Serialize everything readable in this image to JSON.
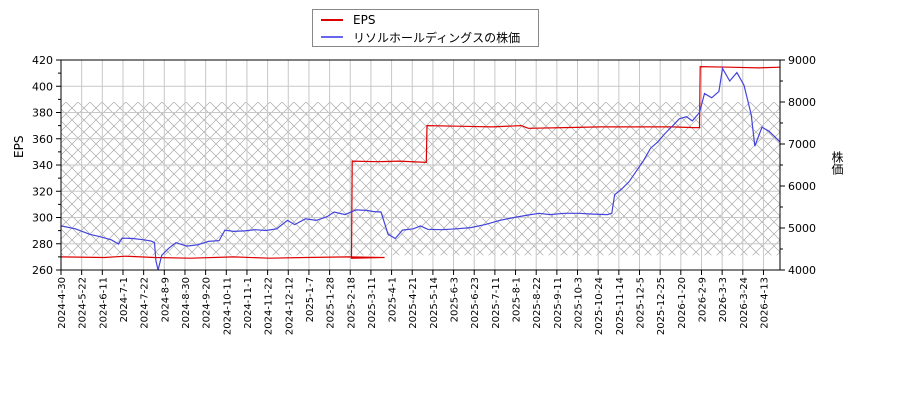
{
  "chart_data": {
    "type": "line",
    "title": "",
    "legend": {
      "position": "top-center",
      "entries": [
        {
          "name": "EPS",
          "color": "#dd0000"
        },
        {
          "name": "リソルホールディングスの株価",
          "color": "#4444dd"
        }
      ]
    },
    "ylabel_left": "EPS",
    "ylabel_right": "株価",
    "ylim_left": [
      260,
      420
    ],
    "ylim_right": [
      4000,
      9000
    ],
    "yticks_left": [
      260,
      280,
      300,
      320,
      340,
      360,
      380,
      400,
      420
    ],
    "yticks_right": [
      4000,
      5000,
      6000,
      7000,
      8000,
      9000
    ],
    "grid": true,
    "hatch_band_right_axis": [
      4350,
      8000
    ],
    "xtick_labels": [
      "2024-4-30",
      "2024-5-22",
      "2024-6-11",
      "2024-7-1",
      "2024-7-22",
      "2024-8-9",
      "2024-8-30",
      "2024-9-20",
      "2024-10-11",
      "2024-11-1",
      "2024-11-22",
      "2024-12-12",
      "2025-1-7",
      "2025-1-28",
      "2025-2-18",
      "2025-3-11",
      "2025-4-1",
      "2025-4-21",
      "2025-5-14",
      "2025-6-3",
      "2025-6-23",
      "2025-7-11",
      "2025-8-1",
      "2025-8-22",
      "2025-9-11",
      "2025-10-3",
      "2025-10-24",
      "2025-11-14",
      "2025-12-5",
      "2025-12-25",
      "2026-1-20",
      "2026-2-9",
      "2026-3-3",
      "2026-3-24",
      "2026-4-13"
    ],
    "series": [
      {
        "name": "EPS",
        "axis": "left",
        "color": "#dd0000",
        "x_frac": [
          0.0,
          0.04,
          0.08,
          0.12,
          0.16,
          0.2,
          0.25,
          0.3,
          0.35,
          0.4,
          0.45,
          0.4,
          0.45,
          0.5,
          0.4,
          0.45,
          0.5,
          0.55
        ],
        "points": [
          [
            0.0,
            270
          ],
          [
            0.06,
            269.5
          ],
          [
            0.09,
            270.5
          ],
          [
            0.13,
            269.5
          ],
          [
            0.18,
            269
          ],
          [
            0.24,
            270
          ],
          [
            0.29,
            269
          ],
          [
            0.34,
            269.5
          ],
          [
            0.4,
            270
          ],
          [
            0.45,
            269.5
          ],
          [
            0.401,
            269
          ],
          [
            0.404,
            269
          ],
          [
            0.405,
            343
          ],
          [
            0.44,
            342.5
          ],
          [
            0.47,
            343
          ],
          [
            0.508,
            342
          ],
          [
            0.509,
            370
          ],
          [
            0.56,
            369.5
          ],
          [
            0.6,
            369
          ],
          [
            0.64,
            370
          ],
          [
            0.65,
            368
          ],
          [
            0.7,
            368.5
          ],
          [
            0.75,
            369
          ],
          [
            0.8,
            369
          ],
          [
            0.85,
            369
          ],
          [
            0.88,
            368.5
          ],
          [
            0.888,
            368.5
          ],
          [
            0.889,
            415
          ],
          [
            0.93,
            414.5
          ],
          [
            0.97,
            414
          ],
          [
            1.0,
            414.5
          ]
        ]
      },
      {
        "name": "リソルホールディングスの株価",
        "axis": "right",
        "color": "#4444dd",
        "points": [
          [
            0.0,
            5050
          ],
          [
            0.02,
            4980
          ],
          [
            0.04,
            4850
          ],
          [
            0.055,
            4790
          ],
          [
            0.07,
            4720
          ],
          [
            0.08,
            4620
          ],
          [
            0.085,
            4760
          ],
          [
            0.1,
            4750
          ],
          [
            0.115,
            4720
          ],
          [
            0.125,
            4690
          ],
          [
            0.13,
            4650
          ],
          [
            0.132,
            4220
          ],
          [
            0.135,
            4000
          ],
          [
            0.14,
            4350
          ],
          [
            0.15,
            4520
          ],
          [
            0.16,
            4650
          ],
          [
            0.175,
            4570
          ],
          [
            0.19,
            4600
          ],
          [
            0.205,
            4680
          ],
          [
            0.22,
            4700
          ],
          [
            0.228,
            4950
          ],
          [
            0.24,
            4920
          ],
          [
            0.255,
            4930
          ],
          [
            0.27,
            4960
          ],
          [
            0.285,
            4940
          ],
          [
            0.3,
            4980
          ],
          [
            0.315,
            5180
          ],
          [
            0.325,
            5080
          ],
          [
            0.34,
            5220
          ],
          [
            0.355,
            5180
          ],
          [
            0.37,
            5270
          ],
          [
            0.38,
            5380
          ],
          [
            0.395,
            5320
          ],
          [
            0.41,
            5430
          ],
          [
            0.425,
            5420
          ],
          [
            0.435,
            5390
          ],
          [
            0.445,
            5380
          ],
          [
            0.455,
            4850
          ],
          [
            0.465,
            4750
          ],
          [
            0.475,
            4950
          ],
          [
            0.49,
            4980
          ],
          [
            0.5,
            5050
          ],
          [
            0.51,
            4970
          ],
          [
            0.53,
            4960
          ],
          [
            0.55,
            4980
          ],
          [
            0.57,
            5010
          ],
          [
            0.59,
            5080
          ],
          [
            0.61,
            5180
          ],
          [
            0.63,
            5250
          ],
          [
            0.65,
            5310
          ],
          [
            0.665,
            5350
          ],
          [
            0.68,
            5320
          ],
          [
            0.7,
            5350
          ],
          [
            0.72,
            5350
          ],
          [
            0.74,
            5330
          ],
          [
            0.76,
            5320
          ],
          [
            0.766,
            5350
          ],
          [
            0.77,
            5790
          ],
          [
            0.78,
            5930
          ],
          [
            0.79,
            6100
          ],
          [
            0.8,
            6350
          ],
          [
            0.81,
            6600
          ],
          [
            0.82,
            6900
          ],
          [
            0.83,
            7050
          ],
          [
            0.84,
            7250
          ],
          [
            0.85,
            7420
          ],
          [
            0.86,
            7600
          ],
          [
            0.87,
            7650
          ],
          [
            0.878,
            7550
          ],
          [
            0.888,
            7750
          ],
          [
            0.895,
            8200
          ],
          [
            0.905,
            8100
          ],
          [
            0.915,
            8250
          ],
          [
            0.92,
            8800
          ],
          [
            0.93,
            8500
          ],
          [
            0.94,
            8700
          ],
          [
            0.95,
            8400
          ],
          [
            0.955,
            8050
          ],
          [
            0.96,
            7700
          ],
          [
            0.965,
            6950
          ],
          [
            0.975,
            7400
          ],
          [
            0.985,
            7300
          ],
          [
            1.0,
            7050
          ]
        ]
      }
    ]
  }
}
